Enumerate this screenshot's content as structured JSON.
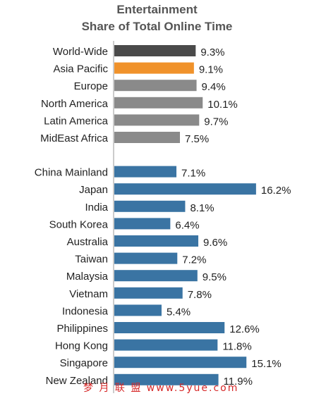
{
  "chart_data": {
    "type": "bar",
    "orientation": "horizontal",
    "title": "Entertainment",
    "subtitle": "Share of Total Online Time",
    "categories": [
      "World-Wide",
      "Asia Pacific",
      "Europe",
      "North America",
      "Latin America",
      "MidEast Africa",
      "China Mainland",
      "Japan",
      "India",
      "South Korea",
      "Australia",
      "Taiwan",
      "Malaysia",
      "Vietnam",
      "Indonesia",
      "Philippines",
      "Hong Kong",
      "Singapore",
      "New Zealand"
    ],
    "values": [
      9.3,
      9.1,
      9.4,
      10.1,
      9.7,
      7.5,
      7.1,
      16.2,
      8.1,
      6.4,
      9.6,
      7.2,
      9.5,
      7.8,
      5.4,
      12.6,
      11.8,
      15.1,
      11.9
    ],
    "value_labels": [
      "9.3%",
      "9.1%",
      "9.4%",
      "10.1%",
      "9.7%",
      "7.5%",
      "7.1%",
      "16.2%",
      "8.1%",
      "6.4%",
      "9.6%",
      "7.2%",
      "9.5%",
      "7.8%",
      "5.4%",
      "12.6%",
      "11.8%",
      "15.1%",
      "11.9%"
    ],
    "groups": [
      "region",
      "region",
      "region",
      "region",
      "region",
      "region",
      "country",
      "country",
      "country",
      "country",
      "country",
      "country",
      "country",
      "country",
      "country",
      "country",
      "country",
      "country",
      "country"
    ],
    "colors": {
      "World-Wide": "#4a4a4a",
      "Asia Pacific": "#f0922b",
      "region": "#8a8a8a",
      "country": "#3a74a3"
    },
    "grid": false,
    "legend": "none"
  },
  "watermark": "梦 月 联 盟  www.5yue.com"
}
